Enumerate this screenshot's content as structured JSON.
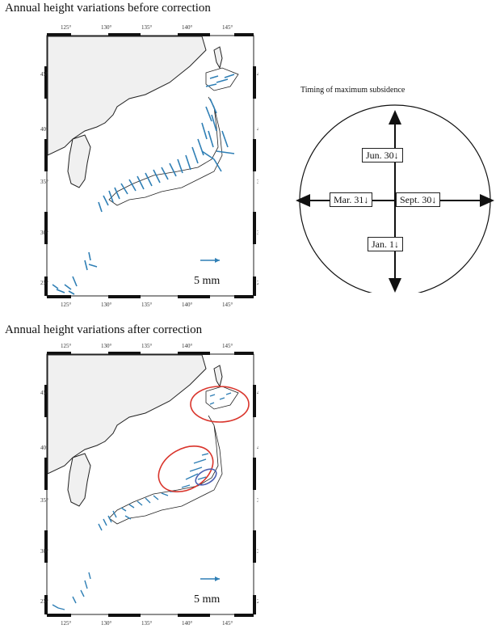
{
  "top_map": {
    "title": "Annual height variations before correction",
    "lon_ticks": [
      "125°",
      "130°",
      "135°",
      "140°",
      "145°"
    ],
    "lat_ticks": [
      "45°",
      "40°",
      "35°",
      "30°",
      "25°"
    ],
    "scale_label": "5 mm"
  },
  "bottom_map": {
    "title": "Annual height variations after correction",
    "lon_ticks": [
      "125°",
      "130°",
      "135°",
      "140°",
      "145°"
    ],
    "lat_ticks": [
      "45°",
      "40°",
      "35°",
      "30°",
      "25°"
    ],
    "scale_label": "5 mm"
  },
  "legend": {
    "title": "Timing of maximum subsidence",
    "north": "Jun. 30↓",
    "west": "Mar. 31↓",
    "east": "Sept. 30↓",
    "south": "Jan. 1↓"
  },
  "colors": {
    "vectors": "#2f7fb5",
    "land": "#f0f0f0",
    "highlight_red": "#d9342b",
    "highlight_blue": "#4a5fb0"
  }
}
